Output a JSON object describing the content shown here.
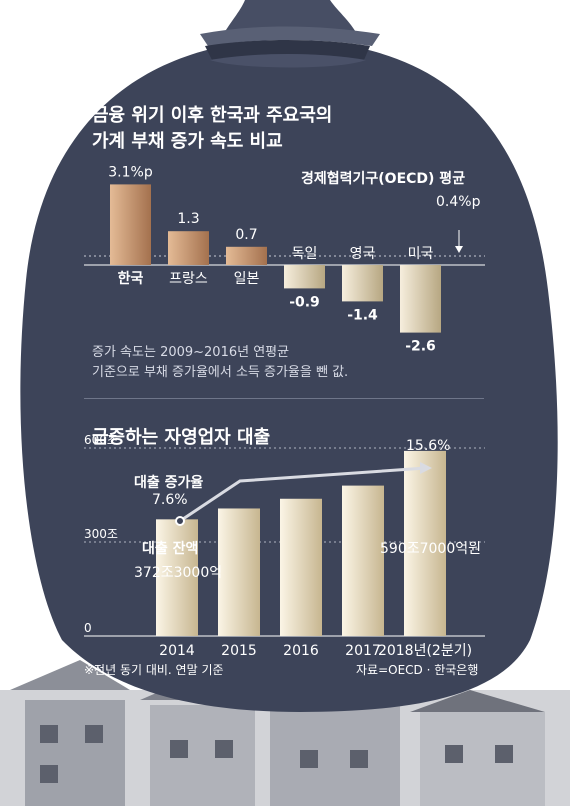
{
  "chart_data": [
    {
      "type": "bar",
      "title": "금융 위기 이후 한국과 주요국의 가계 부채 증가 속도 비교",
      "categories": [
        "한국",
        "프랑스",
        "일본",
        "독일",
        "영국",
        "미국"
      ],
      "values": [
        3.1,
        1.3,
        0.7,
        -0.9,
        -1.4,
        -2.6
      ],
      "value_labels": [
        "3.1%p",
        "1.3",
        "0.7",
        "-0.9",
        "-1.4",
        "-2.6"
      ],
      "reference_line": {
        "label": "경제협력기구(OECD) 평균",
        "value": 0.4,
        "value_label": "0.4%p"
      },
      "note": [
        "증가 속도는 2009~2016년 연평균",
        "기준으로 부채 증가율에서 소득 증가율을 뺀 값."
      ]
    },
    {
      "type": "bar",
      "title": "급증하는 자영업자 대출",
      "categories": [
        "2014",
        "2015",
        "2016",
        "2017",
        "2018년(2분기)"
      ],
      "values": [
        372.3,
        407,
        438,
        480,
        590.7
      ],
      "series_label": "대출 잔액",
      "value_labels": {
        "first": "372조3000억",
        "last": "590조7000억원"
      },
      "yticks": [
        0,
        300,
        600
      ],
      "ytick_labels": [
        "0",
        "300조",
        "600조"
      ],
      "ylim": [
        0,
        700
      ],
      "growth": {
        "label": "대출 증가율",
        "start": 7.6,
        "end": 15.6,
        "start_label": "7.6%",
        "end_label": "15.6%"
      }
    }
  ],
  "footnote": "※전년 동기 대비. 연말 기준",
  "source": "자료=OECD · 한국은행",
  "colors": {
    "bag": "#3d4459",
    "bar_light": "#e4bb96",
    "bar_dark": "#a4714e",
    "neg_light": "#f6eedd",
    "neg_dark": "#b7a782",
    "text": "#ffffff"
  }
}
